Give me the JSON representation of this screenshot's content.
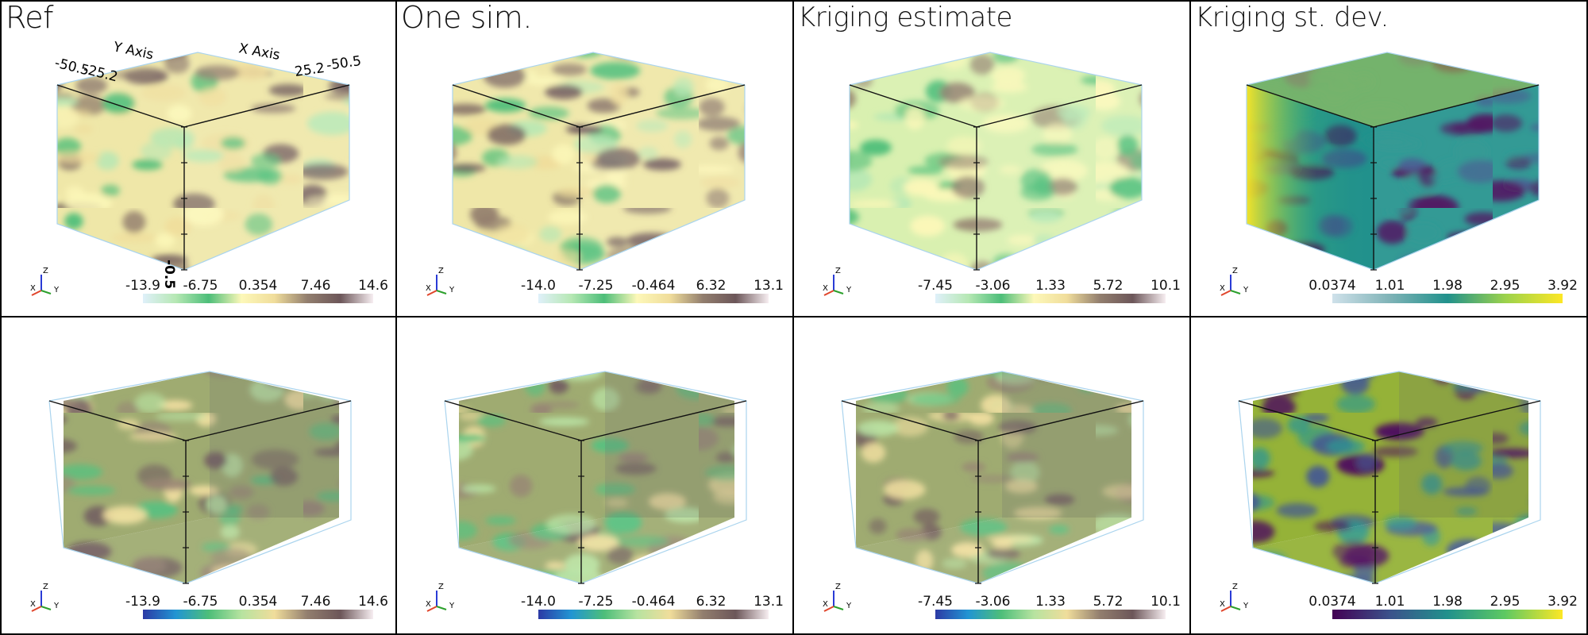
{
  "panels": [
    {
      "title": "Ref",
      "row": 0,
      "col": 0,
      "mode": "volume",
      "cmap": "gist",
      "ticks": [
        "-13.9",
        "-6.75",
        "0.354",
        "7.46",
        "14.6"
      ]
    },
    {
      "title": "One sim.",
      "row": 0,
      "col": 1,
      "mode": "volume",
      "cmap": "gist",
      "ticks": [
        "-14.0",
        "-7.25",
        "-0.464",
        "6.32",
        "13.1"
      ]
    },
    {
      "title": "Kriging estimate",
      "row": 0,
      "col": 2,
      "mode": "volume",
      "cmap": "gist",
      "ticks": [
        "-7.45",
        "-3.06",
        "1.33",
        "5.72",
        "10.1"
      ]
    },
    {
      "title": "Kriging st. dev.",
      "row": 0,
      "col": 3,
      "mode": "volume",
      "cmap": "viridis",
      "ticks": [
        "0.0374",
        "1.01",
        "1.98",
        "2.95",
        "3.92"
      ]
    },
    {
      "title": "",
      "row": 1,
      "col": 0,
      "mode": "slices",
      "cmap": "gist",
      "ticks": [
        "-13.9",
        "-6.75",
        "0.354",
        "7.46",
        "14.6"
      ]
    },
    {
      "title": "",
      "row": 1,
      "col": 1,
      "mode": "slices",
      "cmap": "gist",
      "ticks": [
        "-14.0",
        "-7.25",
        "-0.464",
        "6.32",
        "13.1"
      ]
    },
    {
      "title": "",
      "row": 1,
      "col": 2,
      "mode": "slices",
      "cmap": "gist",
      "ticks": [
        "-7.45",
        "-3.06",
        "1.33",
        "5.72",
        "10.1"
      ]
    },
    {
      "title": "",
      "row": 1,
      "col": 3,
      "mode": "slices",
      "cmap": "viridis",
      "ticks": [
        "0.0374",
        "1.01",
        "1.98",
        "2.95",
        "3.92"
      ]
    }
  ],
  "ref_axes": {
    "x_axis_label": "X Axis",
    "y_axis_label": "Y Axis",
    "y_ticks": [
      "-50.5",
      "-25.2"
    ],
    "x_ticks": [
      "25.2",
      "-50.5"
    ],
    "z_tick": "-0.5"
  },
  "triad_labels": {
    "x": "X",
    "y": "Y",
    "z": "Z"
  },
  "colors": {
    "gist_volume": [
      "#dff0fa",
      "#b6e8b4",
      "#4dbe79",
      "#fdf8b9",
      "#f0dd9b",
      "#927e6e",
      "#6c5659",
      "#f7eef1"
    ],
    "gist_slices": [
      "#2c3aa5",
      "#2195d3",
      "#4dbe79",
      "#b7e3a0",
      "#f0dd9b",
      "#927e6e",
      "#6c5659",
      "#f7eef1"
    ],
    "viridis": [
      "#440154",
      "#3b528b",
      "#21918c",
      "#5ec962",
      "#fde725"
    ],
    "viridis_volume": [
      "#cfe1ea",
      "#7fb3b7",
      "#21918c",
      "#9bd24c",
      "#fde725"
    ]
  }
}
